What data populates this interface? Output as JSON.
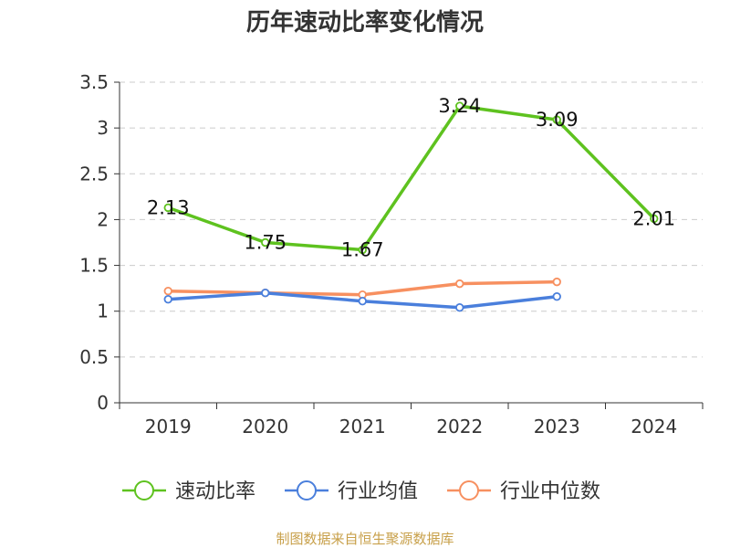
{
  "chart_data": {
    "type": "line",
    "title": "历年速动比率变化情况",
    "categories": [
      "2019",
      "2020",
      "2021",
      "2022",
      "2023",
      "2024"
    ],
    "ylim": [
      0,
      3.5
    ],
    "yticks": [
      "0",
      "0.5",
      "1",
      "1.5",
      "2",
      "2.5",
      "3",
      "3.5"
    ],
    "grid": true,
    "legend_position": "bottom",
    "series": [
      {
        "name": "速动比率",
        "color": "#5ec21f",
        "values": [
          2.13,
          1.75,
          1.67,
          3.24,
          3.09,
          2.01
        ],
        "labels": [
          "2.13",
          "1.75",
          "1.67",
          "3.24",
          "3.09",
          "2.01"
        ],
        "show_labels": true
      },
      {
        "name": "行业均值",
        "color": "#4a7fdc",
        "values": [
          1.13,
          1.2,
          1.11,
          1.04,
          1.16,
          null
        ],
        "show_labels": false
      },
      {
        "name": "行业中位数",
        "color": "#f79060",
        "values": [
          1.22,
          1.2,
          1.18,
          1.3,
          1.32,
          null
        ],
        "show_labels": false
      }
    ]
  },
  "footer": {
    "source": "制图数据来自恒生聚源数据库"
  }
}
